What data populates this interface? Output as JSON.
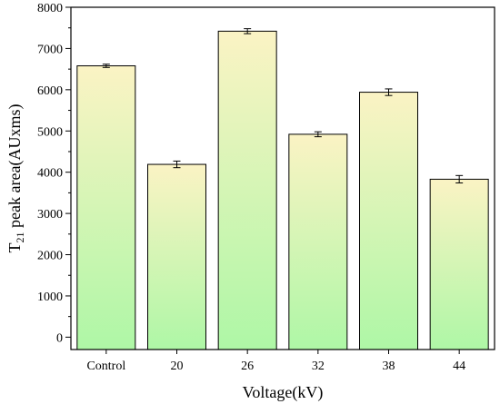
{
  "chart_data": {
    "type": "bar",
    "categories": [
      "Control",
      "20",
      "26",
      "32",
      "38",
      "44"
    ],
    "values": [
      6580,
      4190,
      7420,
      4920,
      5940,
      3830
    ],
    "errors": [
      40,
      80,
      60,
      60,
      80,
      90
    ],
    "xlabel": "Voltage(kV)",
    "ylabel_parts": {
      "pre": "T",
      "sub": "21",
      "post": " peak area(AUxms)"
    },
    "ylim": [
      -300,
      8000
    ],
    "yticks": [
      0,
      1000,
      2000,
      3000,
      4000,
      5000,
      6000,
      7000,
      8000
    ],
    "gradient": {
      "top": "#fbf3c4",
      "bottom": "#aef7a6"
    },
    "grid": false
  }
}
